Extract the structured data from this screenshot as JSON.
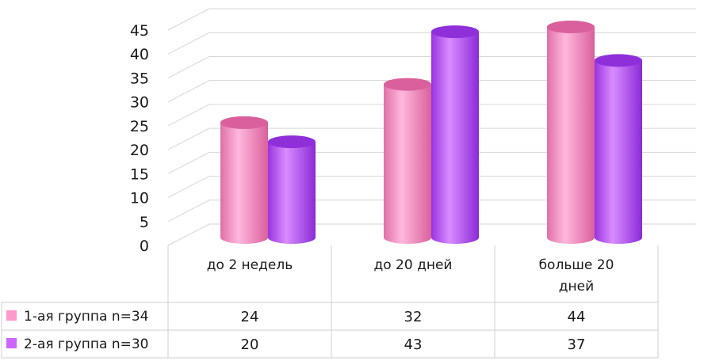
{
  "chart_data": {
    "type": "bar",
    "categories": [
      "до 2 недель",
      "до 20 дней",
      "больше 20 дней"
    ],
    "category_lines": [
      [
        "до 2 недель"
      ],
      [
        "до 20 дней"
      ],
      [
        "больше 20",
        "дней"
      ]
    ],
    "series": [
      {
        "name": "1-ая группа n=34",
        "values": [
          24,
          32,
          44
        ],
        "color": "#ff99cc"
      },
      {
        "name": "2-ая группа n=30",
        "values": [
          20,
          43,
          37
        ],
        "color": "#cc66ff"
      }
    ],
    "ylim": [
      0,
      45
    ],
    "yticks": [
      0,
      5,
      10,
      15,
      20,
      25,
      30,
      35,
      40,
      45
    ],
    "grid": true,
    "data_table": true,
    "style": "3d-cylinder"
  }
}
